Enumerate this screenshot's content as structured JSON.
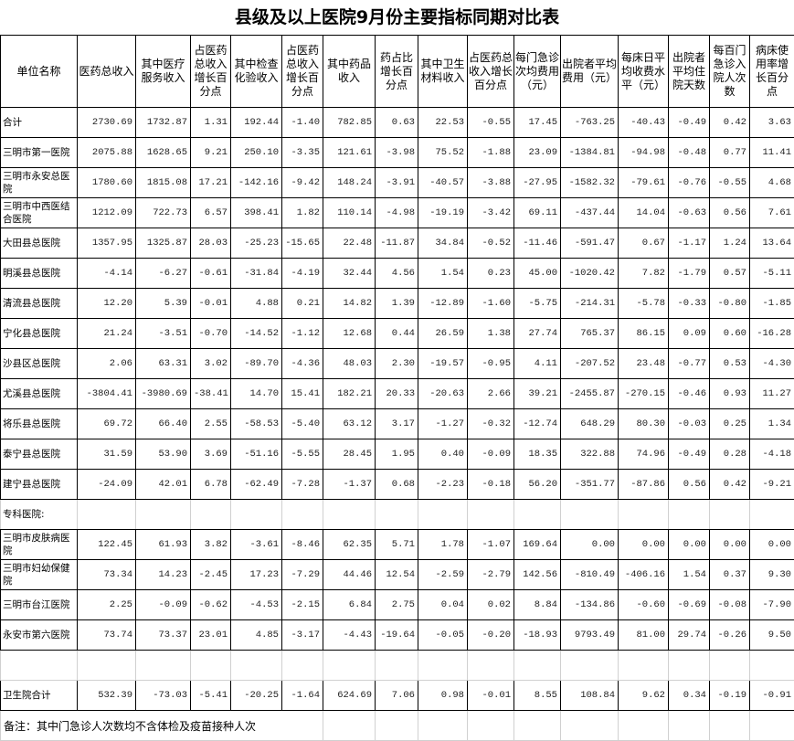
{
  "title": "县级及以上医院9月份主要指标同期对比表",
  "headers": [
    "单位名称",
    "医药总收入",
    "其中医疗服务收入",
    "占医药总收入增长百分点",
    "其中检查化验收入",
    "占医药总收入增长百分点",
    "其中药品收入",
    "药占比增长百分点",
    "其中卫生材料收入",
    "占医药总收入增长百分点",
    "每门急诊次均费用（元）",
    "出院者平均费用（元）",
    "每床日平均收费水平（元）",
    "出院者平均住院天数",
    "每百门急诊入院人次数",
    "病床使用率增长百分点"
  ],
  "rows": [
    [
      "合计",
      "2730.69",
      "1732.87",
      "1.31",
      "192.44",
      "-1.40",
      "782.85",
      "0.63",
      "22.53",
      "-0.55",
      "17.45",
      "-763.25",
      "-40.43",
      "-0.49",
      "0.42",
      "3.63"
    ],
    [
      "三明市第一医院",
      "2075.88",
      "1628.65",
      "9.21",
      "250.10",
      "-3.35",
      "121.61",
      "-3.98",
      "75.52",
      "-1.88",
      "23.09",
      "-1384.81",
      "-94.98",
      "-0.48",
      "0.77",
      "11.41"
    ],
    [
      "三明市永安总医院",
      "1780.60",
      "1815.08",
      "17.21",
      "-142.16",
      "-9.42",
      "148.24",
      "-3.91",
      "-40.57",
      "-3.88",
      "-27.95",
      "-1582.32",
      "-79.61",
      "-0.76",
      "-0.55",
      "4.68"
    ],
    [
      "三明市中西医结合医院",
      "1212.09",
      "722.73",
      "6.57",
      "398.41",
      "1.82",
      "110.14",
      "-4.98",
      "-19.19",
      "-3.42",
      "69.11",
      "-437.44",
      "14.04",
      "-0.63",
      "0.56",
      "7.61"
    ],
    [
      "大田县总医院",
      "1357.95",
      "1325.87",
      "28.03",
      "-25.23",
      "-15.65",
      "22.48",
      "-11.87",
      "34.84",
      "-0.52",
      "-11.46",
      "-591.47",
      "0.67",
      "-1.17",
      "1.24",
      "13.64"
    ],
    [
      "明溪县总医院",
      "-4.14",
      "-6.27",
      "-0.61",
      "-31.84",
      "-4.19",
      "32.44",
      "4.56",
      "1.54",
      "0.23",
      "45.00",
      "-1020.42",
      "7.82",
      "-1.79",
      "0.57",
      "-5.11"
    ],
    [
      "清流县总医院",
      "12.20",
      "5.39",
      "-0.01",
      "4.88",
      "0.21",
      "14.82",
      "1.39",
      "-12.89",
      "-1.60",
      "-5.75",
      "-214.31",
      "-5.78",
      "-0.33",
      "-0.80",
      "-1.85"
    ],
    [
      "宁化县总医院",
      "21.24",
      "-3.51",
      "-0.70",
      "-14.52",
      "-1.12",
      "12.68",
      "0.44",
      "26.59",
      "1.38",
      "27.74",
      "765.37",
      "86.15",
      "0.09",
      "0.60",
      "-16.28"
    ],
    [
      "沙县区总医院",
      "2.06",
      "63.31",
      "3.02",
      "-89.70",
      "-4.36",
      "48.03",
      "2.30",
      "-19.57",
      "-0.95",
      "4.11",
      "-207.52",
      "23.48",
      "-0.77",
      "0.53",
      "-4.30"
    ],
    [
      "尤溪县总医院",
      "-3804.41",
      "-3980.69",
      "-38.41",
      "14.70",
      "15.41",
      "182.21",
      "20.33",
      "-20.63",
      "2.66",
      "39.21",
      "-2455.87",
      "-270.15",
      "-0.46",
      "0.93",
      "11.27"
    ],
    [
      "将乐县总医院",
      "69.72",
      "66.40",
      "2.55",
      "-58.53",
      "-5.40",
      "63.12",
      "3.17",
      "-1.27",
      "-0.32",
      "-12.74",
      "648.29",
      "80.30",
      "-0.03",
      "0.25",
      "1.34"
    ],
    [
      "泰宁县总医院",
      "31.59",
      "53.90",
      "3.69",
      "-51.16",
      "-5.55",
      "28.45",
      "1.95",
      "0.40",
      "-0.09",
      "18.35",
      "322.88",
      "74.96",
      "-0.49",
      "0.28",
      "-4.18"
    ],
    [
      "建宁县总医院",
      "-24.09",
      "42.01",
      "6.78",
      "-62.49",
      "-7.28",
      "-1.37",
      "0.68",
      "-2.23",
      "-0.18",
      "56.20",
      "-351.77",
      "-87.86",
      "0.56",
      "0.42",
      "-9.21"
    ]
  ],
  "special_section_label": "专科医院:",
  "special_rows": [
    [
      "三明市皮肤病医院",
      "122.45",
      "61.93",
      "3.82",
      "-3.61",
      "-8.46",
      "62.35",
      "5.71",
      "1.78",
      "-1.07",
      "169.64",
      "0.00",
      "0.00",
      "0.00",
      "0.00",
      "0.00"
    ],
    [
      "三明市妇幼保健院",
      "73.34",
      "14.23",
      "-2.45",
      "17.23",
      "-7.29",
      "44.46",
      "12.54",
      "-2.59",
      "-2.79",
      "142.56",
      "-810.49",
      "-406.16",
      "1.54",
      "0.37",
      "9.30"
    ],
    [
      "三明市台江医院",
      "2.25",
      "-0.09",
      "-0.62",
      "-4.53",
      "-2.15",
      "6.84",
      "2.75",
      "0.04",
      "0.02",
      "8.84",
      "-134.86",
      "-0.60",
      "-0.69",
      "-0.08",
      "-7.90"
    ],
    [
      "永安市第六医院",
      "73.74",
      "73.37",
      "23.01",
      "4.85",
      "-3.17",
      "-4.43",
      "-19.64",
      "-0.05",
      "-0.20",
      "-18.93",
      "9793.49",
      "81.00",
      "29.74",
      "-0.26",
      "9.50"
    ]
  ],
  "clinic_total": [
    "卫生院合计",
    "532.39",
    "-73.03",
    "-5.41",
    "-20.25",
    "-1.64",
    "624.69",
    "7.06",
    "0.98",
    "-0.01",
    "8.55",
    "108.84",
    "9.62",
    "0.34",
    "-0.19",
    "-0.91"
  ],
  "note": "备注：其中门急诊人次数均不含体检及疫苗接种人次"
}
